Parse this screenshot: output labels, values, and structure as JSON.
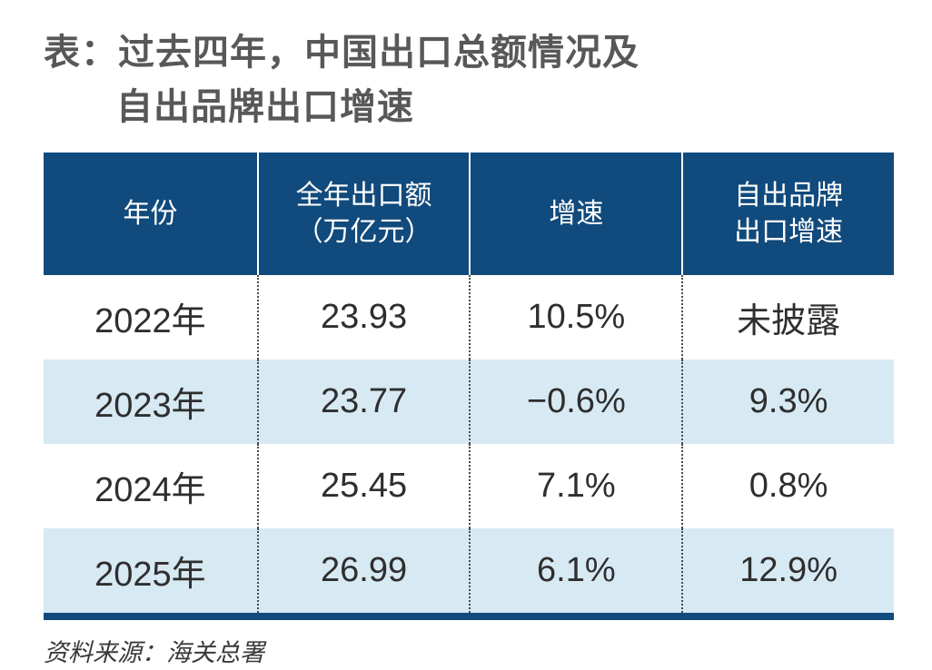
{
  "colors": {
    "header_blue": "#114A7C",
    "row_light_blue": "#D7E9F3",
    "title_gray": "#595757",
    "body_text": "#2E2E2E",
    "source_text": "#3A3A3A",
    "header_text": "#FFFFFF",
    "divider_dotted": "#4A4A4A"
  },
  "title": {
    "line1": "表：过去四年，中国出口总额情况及",
    "line2": "自出品牌出口增速"
  },
  "table": {
    "header": [
      "年份",
      "全年出口额\n（万亿元）",
      "增速",
      "自出品牌\n出口增速"
    ],
    "rows": [
      [
        "2022年",
        "23.93",
        "10.5%",
        "未披露"
      ],
      [
        "2023年",
        "23.77",
        "−0.6%",
        "9.3%"
      ],
      [
        "2024年",
        "25.45",
        "7.1%",
        "0.8%"
      ],
      [
        "2025年",
        "26.99",
        "6.1%",
        "12.9%"
      ]
    ]
  },
  "source": "资料来源：海关总署",
  "chart_data": {
    "type": "table",
    "title": "表：过去四年，中国出口总额情况及自出品牌出口增速",
    "columns": [
      "年份",
      "全年出口额（万亿元）",
      "增速",
      "自出品牌出口增速"
    ],
    "categories": [
      "2022年",
      "2023年",
      "2024年",
      "2025年"
    ],
    "series": [
      {
        "name": "全年出口额（万亿元）",
        "values": [
          23.93,
          23.77,
          25.45,
          26.99
        ]
      },
      {
        "name": "增速",
        "values": [
          "10.5%",
          "−0.6%",
          "7.1%",
          "6.1%"
        ]
      },
      {
        "name": "自出品牌出口增速",
        "values": [
          "未披露",
          "9.3%",
          "0.8%",
          "12.9%"
        ]
      }
    ],
    "source": "资料来源：海关总署"
  }
}
